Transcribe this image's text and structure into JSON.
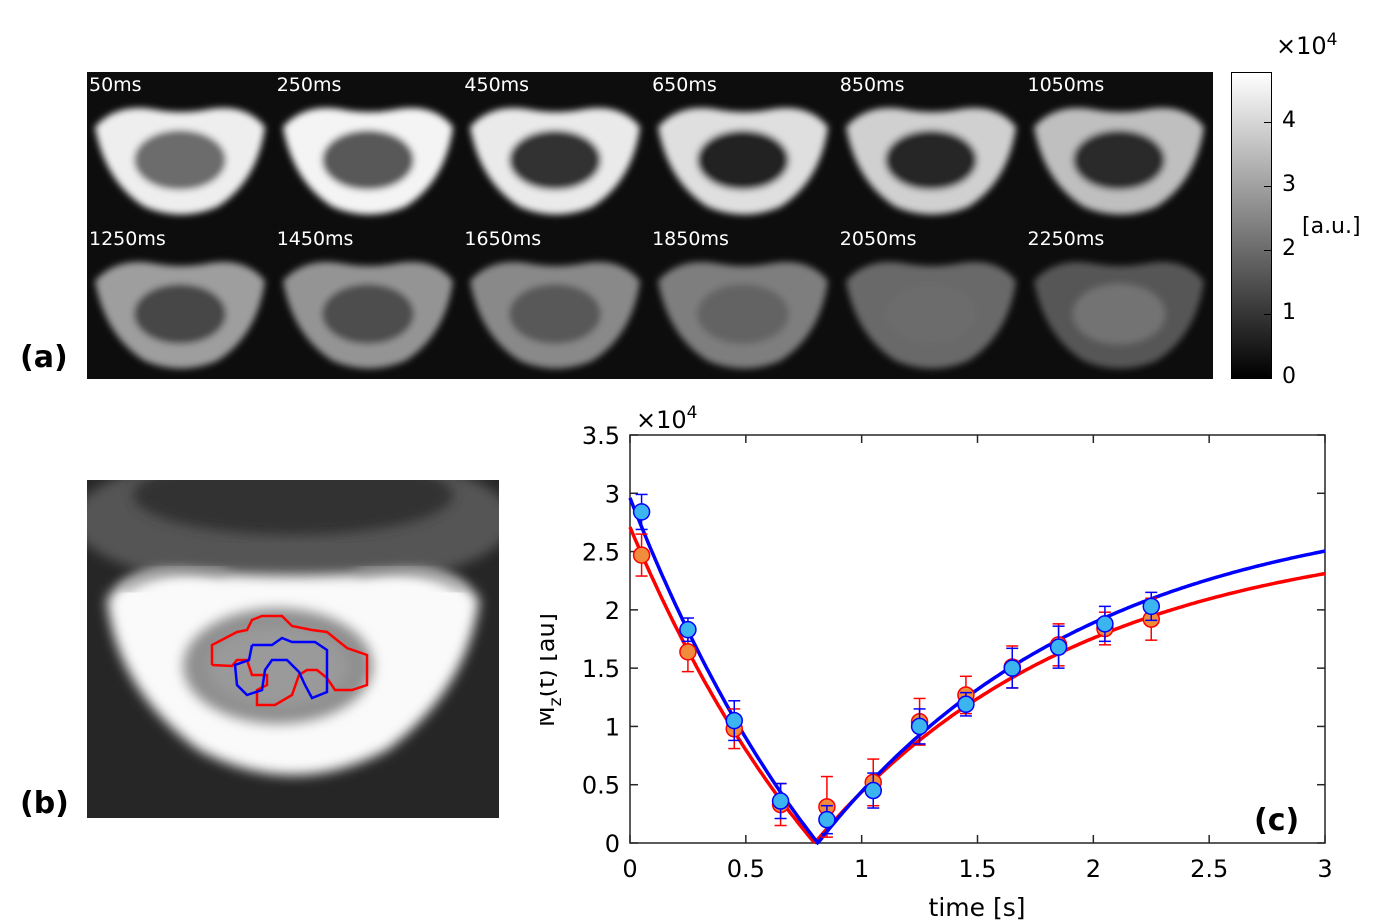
{
  "panels": {
    "a": "(a)",
    "b": "(b)",
    "c": "(c)"
  },
  "frames": [
    {
      "label": "50ms",
      "level": 0.92,
      "center": 0.55
    },
    {
      "label": "250ms",
      "level": 0.95,
      "center": 0.42
    },
    {
      "label": "450ms",
      "level": 0.9,
      "center": 0.15
    },
    {
      "label": "650ms",
      "level": 0.85,
      "center": 0.05
    },
    {
      "label": "850ms",
      "level": 0.78,
      "center": 0.1
    },
    {
      "label": "1050ms",
      "level": 0.7,
      "center": 0.12
    },
    {
      "label": "1250ms",
      "level": 0.55,
      "center": 0.3
    },
    {
      "label": "1450ms",
      "level": 0.5,
      "center": 0.35
    },
    {
      "label": "1650ms",
      "level": 0.45,
      "center": 0.42
    },
    {
      "label": "1850ms",
      "level": 0.4,
      "center": 0.5
    },
    {
      "label": "2050ms",
      "level": 0.3,
      "center": 0.55
    },
    {
      "label": "2250ms",
      "level": 0.22,
      "center": 0.6
    }
  ],
  "colorbar": {
    "exponent_base": "×10",
    "exponent_power": "4",
    "unit": "[a.u.]",
    "ticks": [
      "0",
      "1",
      "2",
      "3",
      "4"
    ],
    "range": [
      0,
      4.8
    ]
  },
  "chart_data": {
    "type": "scatter",
    "title": "",
    "xlabel": "time [s]",
    "ylabel_main": "M",
    "ylabel_sub": "z",
    "ylabel_rest": "(t) [au]",
    "y_exponent_base": "×10",
    "y_exponent_power": "4",
    "xlim": [
      0,
      3
    ],
    "ylim": [
      0,
      3.5
    ],
    "xticks": [
      0,
      0.5,
      1,
      1.5,
      2,
      2.5,
      3
    ],
    "xtick_labels": [
      "0",
      "0.5",
      "1",
      "1.5",
      "2",
      "2.5",
      "3"
    ],
    "yticks": [
      0,
      0.5,
      1,
      1.5,
      2,
      2.5,
      3,
      3.5
    ],
    "ytick_labels": [
      "0",
      "0.5",
      "1",
      "1.5",
      "2",
      "2.5",
      "3",
      "3.5"
    ],
    "series": [
      {
        "name": "red ROI",
        "color": "#ff0000",
        "marker_color": "#f08c3c",
        "x": [
          0.05,
          0.25,
          0.45,
          0.65,
          0.85,
          1.05,
          1.25,
          1.45,
          1.65,
          1.85,
          2.05,
          2.25
        ],
        "y": [
          2.47,
          1.64,
          0.98,
          0.33,
          0.31,
          0.52,
          1.04,
          1.27,
          1.51,
          1.7,
          1.84,
          1.92
        ],
        "err": [
          0.18,
          0.17,
          0.17,
          0.18,
          0.26,
          0.2,
          0.2,
          0.16,
          0.18,
          0.18,
          0.14,
          0.18
        ],
        "fit": {
          "M0": 2.71,
          "A": 2.0,
          "T1": 1.15
        }
      },
      {
        "name": "blue ROI",
        "color": "#0000ff",
        "marker_color": "#3cb4f0",
        "x": [
          0.05,
          0.25,
          0.45,
          0.65,
          0.85,
          1.05,
          1.25,
          1.45,
          1.65,
          1.85,
          2.05,
          2.25
        ],
        "y": [
          2.84,
          1.83,
          1.05,
          0.36,
          0.2,
          0.45,
          1.0,
          1.19,
          1.5,
          1.68,
          1.88,
          2.03
        ],
        "err": [
          0.15,
          0.1,
          0.17,
          0.15,
          0.12,
          0.15,
          0.15,
          0.1,
          0.17,
          0.18,
          0.15,
          0.12
        ],
        "fit": {
          "M0": 2.96,
          "A": 2.0,
          "T1": 1.17
        }
      }
    ]
  }
}
